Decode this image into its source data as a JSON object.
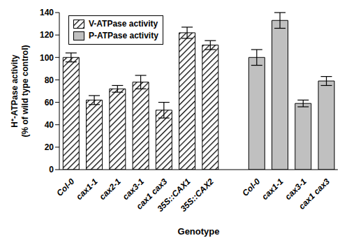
{
  "chart_data": {
    "type": "bar",
    "x_label": "Genotype",
    "y_label": [
      "H⁺-ATPase activity",
      "(% of wild type control)"
    ],
    "categories": [
      "Col-0",
      "cax1-1",
      "cax2-1",
      "cax3-1",
      "cax1 cax3",
      "35S::CAX1",
      "35S::CAX2",
      null,
      "Col-0",
      "cax1-1",
      "cax3-1",
      "cax1 cax3"
    ],
    "series": [
      {
        "name": "V-ATPase activity",
        "color": "#000000",
        "marker": "hatch",
        "values": [
          100,
          62,
          72,
          78,
          53,
          122,
          111,
          null,
          null,
          null,
          null,
          null
        ],
        "errors": [
          4,
          4,
          3,
          6,
          7,
          5,
          4,
          null,
          null,
          null,
          null,
          null
        ]
      },
      {
        "name": "P-ATPase activity",
        "color": "#c0c0c0",
        "marker": "solid",
        "values": [
          null,
          null,
          null,
          null,
          null,
          null,
          null,
          null,
          100,
          133,
          59,
          79
        ],
        "errors": [
          null,
          null,
          null,
          null,
          null,
          null,
          null,
          null,
          7,
          7,
          3,
          4
        ]
      }
    ],
    "ylim": [
      0,
      140
    ],
    "yticks": [
      0,
      20,
      40,
      60,
      80,
      100,
      120,
      140
    ],
    "legend": "top-left",
    "grid": false
  }
}
